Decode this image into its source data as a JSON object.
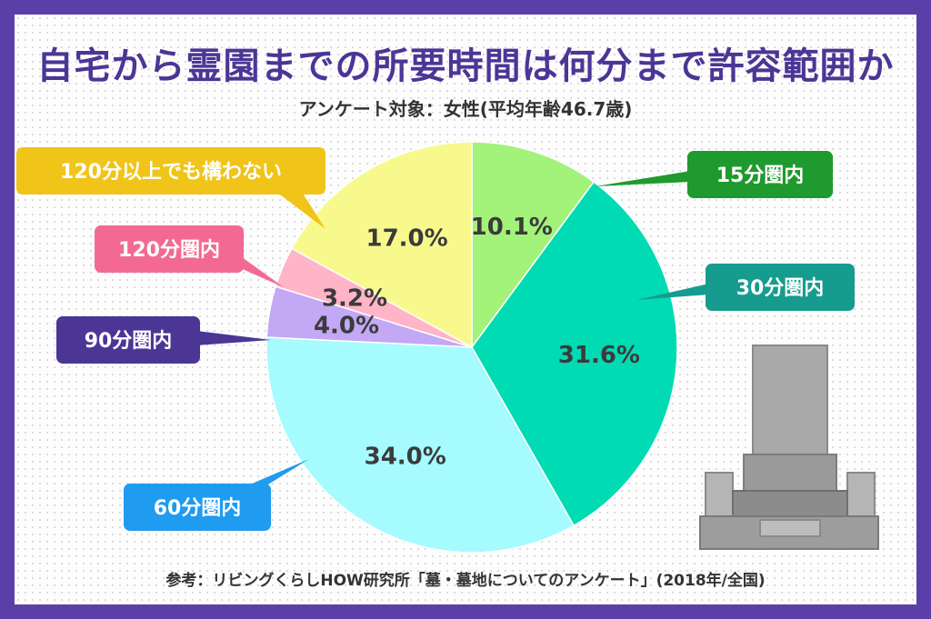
{
  "title": "自宅から霊園までの所要時間は何分まで許容範囲か",
  "subtitle": "アンケート対象：女性(平均年齢46.7歳)",
  "footer": "参考：リビングくらしHOW研究所「墓・墓地についてのアンケート」(2018年/全国)",
  "chart_data": {
    "type": "pie",
    "title": "自宅から霊園までの所要時間は何分まで許容範囲か",
    "slices": [
      {
        "label": "15分圏内",
        "value": 10.1,
        "display": "10.1%",
        "color": "#a3f27a",
        "label_color": "#1f9a2e"
      },
      {
        "label": "30分圏内",
        "value": 31.6,
        "display": "31.6%",
        "color": "#00dbb4",
        "label_color": "#169c8e"
      },
      {
        "label": "60分圏内",
        "value": 34.0,
        "display": "34.0%",
        "color": "#a6fbff",
        "label_color": "#1f9bef"
      },
      {
        "label": "90分圏内",
        "value": 4.0,
        "display": "4.0%",
        "color": "#c3a8f5",
        "label_color": "#4b3696"
      },
      {
        "label": "120分圏内",
        "value": 3.2,
        "display": "3.2%",
        "color": "#ffb4c8",
        "label_color": "#f26a93"
      },
      {
        "label": "120分以上でも構わない",
        "value": 17.0,
        "display": "17.0%",
        "color": "#f8f98c",
        "label_color": "#f0c418"
      }
    ]
  }
}
